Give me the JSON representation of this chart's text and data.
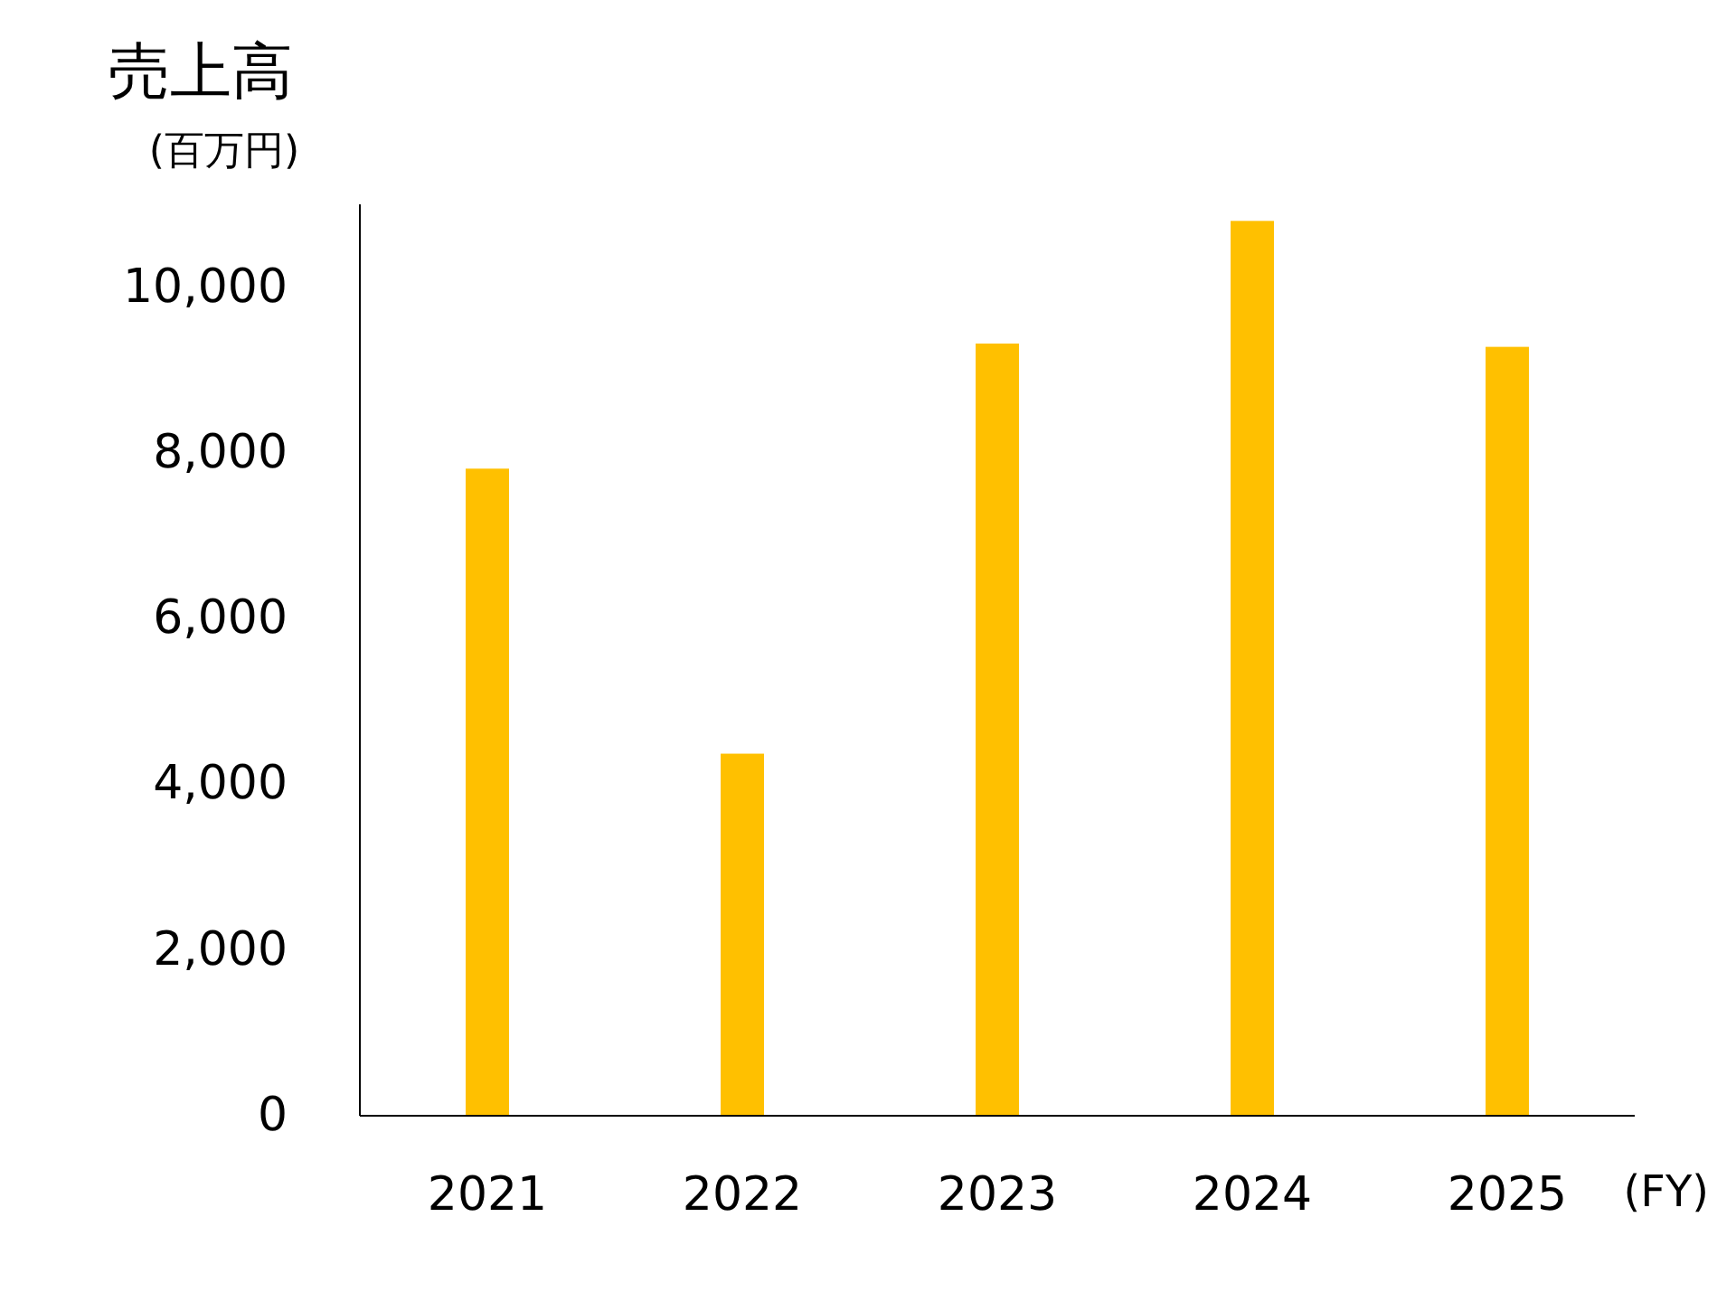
{
  "chart_data": {
    "type": "bar",
    "title": "売上高",
    "ylabel": "(百万円)",
    "xlabel": "(FY)",
    "categories": [
      "2021",
      "2022",
      "2023",
      "2024",
      "2025"
    ],
    "values": [
      7810,
      4370,
      9320,
      10800,
      9280
    ],
    "color": "#ffc000",
    "ylim": [
      0,
      11000
    ],
    "yticks": [
      0,
      {
        "value": 2000,
        "label": "2,000"
      },
      {
        "value": 4000,
        "label": "4,000"
      },
      {
        "value": 6000,
        "label": "6,000"
      },
      {
        "value": 8000,
        "label": "8,000"
      },
      {
        "value": 10000,
        "label": "10,000"
      }
    ]
  }
}
